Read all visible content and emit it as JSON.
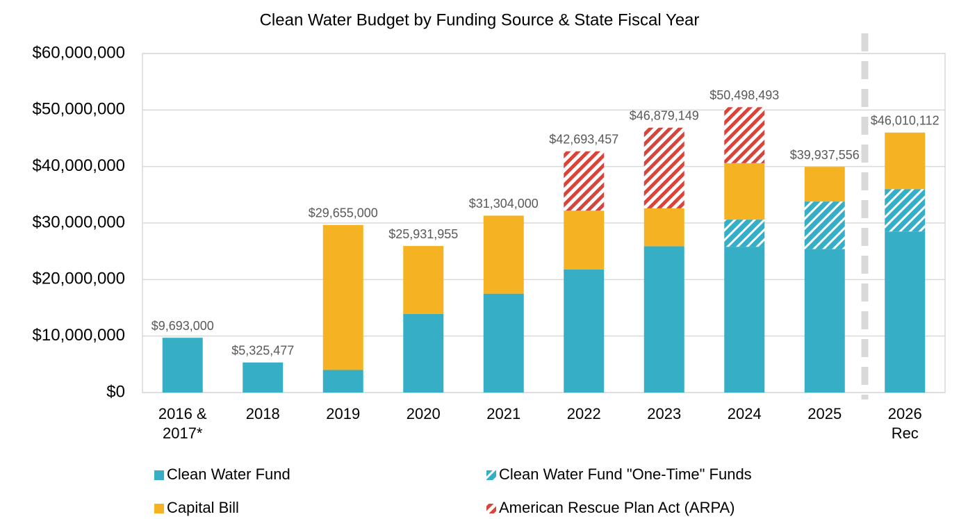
{
  "chart_data": {
    "type": "stacked_bar",
    "title": "Clean Water Budget by Funding Source & State Fiscal Year",
    "categories": [
      "2016 & 2017*",
      "2018",
      "2019",
      "2020",
      "2021",
      "2022",
      "2023",
      "2024",
      "2025",
      "2026 Rec"
    ],
    "series": [
      {
        "name": "Clean Water Fund",
        "color": "#35aec6",
        "pattern": "solid",
        "values": [
          9693000,
          5325477,
          4000000,
          13900000,
          17500000,
          21800000,
          25900000,
          25800000,
          25400000,
          28500000
        ]
      },
      {
        "name": "Clean Water Fund \"One-Time\" Funds",
        "color": "#35aec6",
        "pattern": "hatch",
        "values": [
          null,
          null,
          null,
          null,
          null,
          null,
          null,
          4800000,
          8400000,
          7500000
        ]
      },
      {
        "name": "Capital Bill",
        "color": "#f5b324",
        "pattern": "solid",
        "values": [
          null,
          null,
          25655000,
          12031955,
          13804000,
          10400000,
          6700000,
          10000000,
          6137556,
          10010112
        ]
      },
      {
        "name": "American Rescue Plan Act (ARPA)",
        "color": "#d9443a",
        "pattern": "hatch",
        "values": [
          null,
          null,
          null,
          null,
          null,
          10493457,
          14279149,
          9898493,
          null,
          null
        ]
      }
    ],
    "totals": {
      "values": [
        9693000,
        5325477,
        29655000,
        25931955,
        31304000,
        42693457,
        46879149,
        50498493,
        39937556,
        46010112
      ],
      "value_labels": [
        "$9,693,000",
        "$5,325,477",
        "$29,655,000",
        "$25,931,955",
        "$31,304,000",
        "$42,693,457",
        "$46,879,149",
        "$50,498,493",
        "$39,937,556",
        "$46,010,112"
      ]
    },
    "ylim": [
      0,
      60000000
    ],
    "yticks": [
      {
        "value": 0,
        "label": "$0"
      },
      {
        "value": 10000000,
        "label": "$10,000,000"
      },
      {
        "value": 20000000,
        "label": "$20,000,000"
      },
      {
        "value": 30000000,
        "label": "$30,000,000"
      },
      {
        "value": 40000000,
        "label": "$40,000,000"
      },
      {
        "value": 50000000,
        "label": "$50,000,000"
      },
      {
        "value": 60000000,
        "label": "$60,000,000"
      }
    ],
    "grid": true,
    "legend": "bottom"
  }
}
